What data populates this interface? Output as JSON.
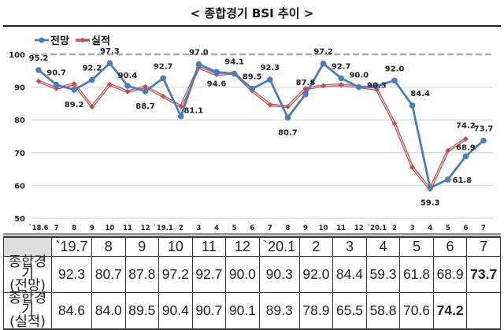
{
  "title": "< 종합경기 BSI 추이 >",
  "chart_data": {
    "type": "line",
    "title": "< 종합경기 BSI 추이 >",
    "categories": [
      "`18.6",
      "7",
      "8",
      "9",
      "10",
      "11",
      "12",
      "`19.1",
      "2",
      "3",
      "4",
      "5",
      "6",
      "7",
      "8",
      "9",
      "10",
      "11",
      "12",
      "`20.1",
      "2",
      "3",
      "4",
      "5",
      "6",
      "7"
    ],
    "ylim": [
      50,
      100
    ],
    "yticks": [
      50,
      60,
      70,
      80,
      90,
      100
    ],
    "reference_line": 100,
    "grid": true,
    "legend": "top-left",
    "series": [
      {
        "name": "전망",
        "color": "#4a7ebb",
        "marker": "circle",
        "values": [
          95.2,
          90.7,
          89.2,
          92.2,
          97.3,
          90.4,
          88.7,
          92.7,
          81.1,
          97.0,
          94.6,
          94.1,
          89.5,
          92.3,
          80.7,
          87.8,
          97.2,
          92.7,
          90.0,
          90.3,
          92.0,
          84.4,
          59.3,
          61.8,
          68.9,
          73.7
        ]
      },
      {
        "name": "실적",
        "color": "#c0504d",
        "marker": "diamond",
        "values": [
          91.8,
          89.6,
          91.0,
          84.0,
          90.8,
          88.6,
          90.1,
          87.2,
          84.1,
          96.0,
          93.8,
          94.3,
          88.9,
          84.6,
          84.0,
          89.5,
          90.4,
          90.7,
          90.1,
          89.3,
          78.9,
          65.5,
          58.8,
          70.6,
          74.2,
          null
        ]
      }
    ],
    "labels": [
      {
        "i": 0,
        "text": "95.2",
        "dy": -12
      },
      {
        "i": 1,
        "text": "90.7",
        "dy": -12
      },
      {
        "i": 2,
        "text": "89.2",
        "dy": 22
      },
      {
        "i": 3,
        "text": "92.2",
        "dy": -12
      },
      {
        "i": 4,
        "text": "97.3",
        "dy": -12
      },
      {
        "i": 5,
        "text": "90.4",
        "dy": -10
      },
      {
        "i": 6,
        "text": "88.7",
        "dy": 22
      },
      {
        "i": 7,
        "text": "92.7",
        "dy": -12
      },
      {
        "i": 8,
        "text": "81.1",
        "dy": -4,
        "dx": 16
      },
      {
        "i": 9,
        "text": "97.0",
        "dy": -12
      },
      {
        "i": 10,
        "text": "94.6",
        "dy": 18
      },
      {
        "i": 11,
        "text": "94.1",
        "dy": -12
      },
      {
        "i": 12,
        "text": "89.5",
        "dy": -12
      },
      {
        "i": 13,
        "text": "92.3",
        "dy": -12
      },
      {
        "i": 14,
        "text": "80.7",
        "dy": 22
      },
      {
        "i": 15,
        "text": "87.8",
        "dy": -12
      },
      {
        "i": 16,
        "text": "97.2",
        "dy": -12
      },
      {
        "i": 17,
        "text": "92.7",
        "dy": -12
      },
      {
        "i": 18,
        "text": "90.0",
        "dy": -12
      },
      {
        "i": 19,
        "text": "90.3",
        "dy": 2
      },
      {
        "i": 20,
        "text": "92.0",
        "dy": -12
      },
      {
        "i": 21,
        "text": "84.4",
        "dy": -12,
        "dx": 10
      },
      {
        "i": 22,
        "text": "59.3",
        "dy": 22
      },
      {
        "i": 23,
        "text": "61.8",
        "dy": 4,
        "dx": 18
      },
      {
        "i": 24,
        "text": "68.9",
        "dy": -8
      },
      {
        "i": 24,
        "text": "74.2",
        "dy": -36
      },
      {
        "i": 25,
        "text": "73.7",
        "dy": -12
      }
    ]
  },
  "table": {
    "headers": [
      "",
      "`19.7",
      "8",
      "9",
      "10",
      "11",
      "12",
      "`20.1",
      "2",
      "3",
      "4",
      "5",
      "6",
      "7"
    ],
    "rows": [
      {
        "label1": "종합경기",
        "label2": "(전망)",
        "values": [
          "92.3",
          "80.7",
          "87.8",
          "97.2",
          "92.7",
          "90.0",
          "90.3",
          "92.0",
          "84.4",
          "59.3",
          "61.8",
          "68.9",
          "73.7"
        ]
      },
      {
        "label1": "종합경기",
        "label2": "(실적)",
        "values": [
          "84.6",
          "84.0",
          "89.5",
          "90.4",
          "90.7",
          "90.1",
          "89.3",
          "78.9",
          "65.5",
          "58.8",
          "70.6",
          "74.2",
          ""
        ]
      }
    ]
  }
}
